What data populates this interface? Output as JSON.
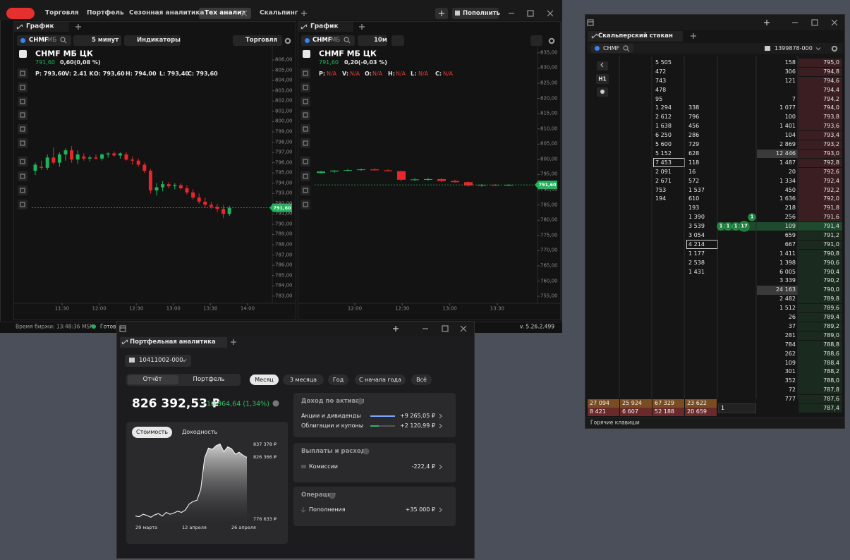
{
  "main_window": {
    "tabs": [
      "Торговля",
      "Портфель",
      "Сезонная аналитика",
      "Тех анализ",
      "Скальпинг"
    ],
    "deposit_button": "Пополнить",
    "status": {
      "exchange_time": "Время биржи: 13:48:36 MSK",
      "state": "Готов к",
      "version": "v. 5.26.2.499"
    }
  },
  "chart_left": {
    "type": "candlestick",
    "panel": "График",
    "ticker": "CHMF",
    "board": "МБ",
    "interval": "5 минут",
    "indicators": "Индикаторы",
    "trade": "Торговля",
    "title": "CHMF МБ ЦК",
    "last_price": {
      "value": 791.6,
      "label": "791,60"
    },
    "change": "0,60(0,08 %)",
    "ohlc": [
      "P: 793,60",
      "V: 2.41 K",
      "O: 793,60",
      "H: 794,00",
      "L: 793,40",
      "C: 793,60"
    ],
    "candles": [
      [
        795.2,
        796.0,
        794.8,
        795.8
      ],
      [
        795.6,
        796.2,
        795.3,
        795.5
      ],
      [
        795.5,
        796.8,
        795.3,
        796.5
      ],
      [
        796.5,
        797.5,
        795.8,
        796.0
      ],
      [
        796.0,
        797.0,
        795.6,
        796.8
      ],
      [
        796.8,
        797.4,
        796.2,
        797.2
      ],
      [
        797.2,
        797.6,
        796.0,
        796.3
      ],
      [
        796.3,
        797.2,
        795.9,
        796.8
      ],
      [
        796.6,
        796.9,
        796.2,
        796.4
      ],
      [
        796.4,
        796.7,
        796.1,
        796.5
      ],
      [
        796.5,
        796.8,
        796.3,
        796.4
      ],
      [
        796.4,
        796.9,
        796.2,
        796.8
      ],
      [
        796.8,
        797.0,
        796.5,
        796.9
      ],
      [
        796.9,
        797.1,
        796.6,
        796.7
      ],
      [
        796.7,
        797.0,
        796.4,
        796.9
      ],
      [
        796.8,
        797.0,
        796.2,
        796.3
      ],
      [
        796.3,
        796.6,
        795.8,
        796.2
      ],
      [
        796.2,
        796.4,
        795.6,
        795.8
      ],
      [
        795.8,
        796.0,
        795.0,
        795.2
      ],
      [
        795.2,
        795.4,
        793.0,
        793.3
      ],
      [
        793.3,
        794.0,
        792.8,
        793.6
      ],
      [
        793.6,
        794.2,
        793.2,
        793.9
      ],
      [
        793.9,
        794.1,
        793.5,
        793.7
      ],
      [
        793.7,
        794.0,
        793.4,
        793.8
      ],
      [
        793.8,
        794.0,
        793.4,
        793.5
      ],
      [
        793.5,
        793.8,
        792.9,
        793.1
      ],
      [
        793.1,
        793.4,
        792.4,
        792.6
      ],
      [
        792.6,
        793.0,
        792.0,
        792.2
      ],
      [
        792.2,
        792.6,
        791.6,
        791.9
      ],
      [
        791.9,
        792.2,
        791.5,
        791.7
      ],
      [
        791.7,
        792.0,
        791.2,
        791.5
      ],
      [
        791.5,
        791.9,
        790.6,
        791.0
      ],
      [
        791.0,
        791.8,
        790.8,
        791.6
      ]
    ],
    "ylim": [
      782.3,
      806.9
    ],
    "yticks": [
      {
        "value": 806,
        "label": "806,00"
      },
      {
        "value": 805,
        "label": "805,00"
      },
      {
        "value": 804,
        "label": "804,00"
      },
      {
        "value": 803,
        "label": "803,00"
      },
      {
        "value": 802,
        "label": "802,00"
      },
      {
        "value": 801,
        "label": "801,00"
      },
      {
        "value": 800,
        "label": "800,00"
      },
      {
        "value": 799,
        "label": "799,00"
      },
      {
        "value": 798,
        "label": "798,00"
      },
      {
        "value": 797,
        "label": "797,00"
      },
      {
        "value": 796,
        "label": "796,00"
      },
      {
        "value": 795,
        "label": "795,00"
      },
      {
        "value": 794,
        "label": "794,00"
      },
      {
        "value": 793,
        "label": "793,00"
      },
      {
        "value": 792,
        "label": "792,00"
      },
      {
        "value": 791,
        "label": "791,00"
      },
      {
        "value": 790,
        "label": "790,00"
      },
      {
        "value": 789,
        "label": "789,00"
      },
      {
        "value": 788,
        "label": "788,00"
      },
      {
        "value": 787,
        "label": "787,00"
      },
      {
        "value": 786,
        "label": "786,00"
      },
      {
        "value": 785,
        "label": "785,00"
      },
      {
        "value": 784,
        "label": "784,00"
      },
      {
        "value": 783,
        "label": "783,00"
      }
    ],
    "xticks": [
      "11:30",
      "12:00",
      "12:30",
      "13:00",
      "13:30",
      "14:00"
    ]
  },
  "chart_right": {
    "type": "candlestick",
    "panel": "График",
    "ticker": "CHMF",
    "board": "МБ",
    "interval": "10м",
    "title": "CHMF МБ ЦК",
    "last_price": {
      "value": 791.6,
      "label": "791,60"
    },
    "change": "0,20(-0,03 %)",
    "ohlc_labels": [
      "P:",
      "V:",
      "O:",
      "H:",
      "L:",
      "C:"
    ],
    "na": "N/A",
    "candles": [
      [
        795.5,
        796.2,
        795.3,
        796.0
      ],
      [
        796.0,
        796.5,
        795.6,
        796.3
      ],
      [
        796.3,
        796.8,
        796.0,
        796.5
      ],
      [
        796.5,
        797.0,
        796.2,
        796.7
      ],
      [
        796.7,
        797.1,
        796.3,
        796.4
      ],
      [
        796.4,
        796.8,
        796.0,
        796.1
      ],
      [
        796.1,
        796.3,
        792.8,
        793.3
      ],
      [
        793.3,
        793.8,
        792.9,
        793.4
      ],
      [
        793.4,
        793.9,
        793.0,
        793.5
      ],
      [
        793.5,
        793.8,
        792.6,
        792.9
      ],
      [
        792.9,
        793.3,
        792.3,
        792.5
      ],
      [
        792.5,
        792.8,
        791.0,
        791.4
      ],
      [
        791.4,
        791.9,
        791.0,
        791.6
      ],
      [
        791.6,
        791.9,
        791.2,
        791.4
      ],
      [
        791.4,
        791.8,
        791.2,
        791.6
      ]
    ],
    "ylim": [
      752.7,
      836.6
    ],
    "yticks": [
      {
        "value": 835,
        "label": "835,00"
      },
      {
        "value": 830,
        "label": "830,00"
      },
      {
        "value": 825,
        "label": "825,00"
      },
      {
        "value": 820,
        "label": "820,00"
      },
      {
        "value": 815,
        "label": "815,00"
      },
      {
        "value": 810,
        "label": "810,00"
      },
      {
        "value": 805,
        "label": "805,00"
      },
      {
        "value": 800,
        "label": "800,00"
      },
      {
        "value": 795,
        "label": "795,00"
      },
      {
        "value": 790,
        "label": "790,00"
      },
      {
        "value": 785,
        "label": "785,00"
      },
      {
        "value": 780,
        "label": "780,00"
      },
      {
        "value": 775,
        "label": "775,00"
      },
      {
        "value": 770,
        "label": "770,00"
      },
      {
        "value": 765,
        "label": "765,00"
      },
      {
        "value": 760,
        "label": "760,00"
      },
      {
        "value": 755,
        "label": "755,00"
      }
    ],
    "xticks": [
      "12:00",
      "12:30",
      "13:00",
      "13:30"
    ]
  },
  "scalper": {
    "title": "Скальперский стакан",
    "ticker": "CHMF",
    "account": "1399878-000",
    "timeframe": "H1",
    "book": {
      "prices": [
        "795,0",
        "794,8",
        "794,6",
        "794,4",
        "794,2",
        "794,0",
        "793,8",
        "793,6",
        "793,4",
        "793,2",
        "793,0",
        "792,8",
        "792,6",
        "792,4",
        "792,2",
        "792,0",
        "791,8",
        "791,6",
        "791,4",
        "791,2",
        "791,0",
        "790,8",
        "790,6",
        "790,4",
        "790,2",
        "790,0",
        "789,8",
        "789,6",
        "789,4",
        "789,2",
        "789,0",
        "788,8",
        "788,6",
        "788,4",
        "788,2",
        "788,0",
        "787,8",
        "787,6",
        "787,4"
      ],
      "volumes": [
        "158",
        "306",
        "121",
        null,
        "7",
        "1 077",
        "100",
        "1 401",
        "104",
        "2 869",
        "12 446",
        "1 487",
        "20",
        "1 334",
        "450",
        "1 636",
        "218",
        "256",
        "109",
        "659",
        "667",
        "1 411",
        "1 398",
        "6 005",
        "3 339",
        "24 163",
        "2 482",
        "1 512",
        "26",
        "37",
        "281",
        "784",
        "262",
        "109",
        "301",
        "352",
        "72",
        "777",
        null
      ]
    },
    "clusters": [
      [
        "5 505",
        "472",
        "743",
        "478",
        "95",
        "1 294",
        "2 612",
        "1 638",
        "6 250",
        "5 600",
        "5 152",
        "7 453",
        "2 091",
        "2 671",
        "753",
        "194",
        null,
        null,
        null,
        null,
        null,
        null,
        null,
        null,
        null,
        null,
        null,
        null,
        null,
        null,
        null,
        null,
        null,
        null,
        null,
        null,
        null,
        null,
        null
      ],
      [
        null,
        null,
        null,
        null,
        null,
        "338",
        "796",
        "456",
        "286",
        "729",
        "628",
        "118",
        "16",
        "572",
        "1 537",
        "610",
        "193",
        "1 390",
        "3 539",
        "3 054",
        "4 214",
        "1 177",
        "2 538",
        "1 431",
        null,
        null,
        null,
        null,
        null,
        null,
        null,
        null,
        null,
        null,
        null,
        null,
        null,
        null,
        null
      ]
    ],
    "trades": [
      "1",
      "1",
      "1",
      "17",
      "1"
    ],
    "totals": [
      [
        "27 094",
        "25 924",
        "67 329",
        "23 622"
      ],
      [
        "8 421",
        "6 607",
        "52 188",
        "20 659"
      ]
    ],
    "quantity": "1",
    "hotkeys": "Горячие клавиши"
  },
  "portfolio": {
    "title": "Портфельная аналитика",
    "account": "10411002-000",
    "views": [
      "Отчёт",
      "Портфель"
    ],
    "periods": [
      "Месяц",
      "3 месяца",
      "Год",
      "С начала года",
      "Всё"
    ],
    "total": "826 392,53 ₽",
    "gain": "+10 964,64 (1,34%)",
    "chart": {
      "type": "area",
      "modes": [
        "Стоимость",
        "Доходность"
      ],
      "values": [
        778000,
        777500,
        779500,
        778500,
        777000,
        779000,
        780000,
        778000,
        781000,
        779500,
        780500,
        782000,
        781000,
        783000,
        788000,
        790000,
        791000,
        800000,
        826000,
        834000,
        833000,
        836000,
        837378,
        831000,
        835000,
        833500,
        829000,
        830500,
        828000,
        826366
      ],
      "ylim": [
        772000,
        840000
      ],
      "labels": [
        "837 378 ₽",
        "826 366 ₽",
        "776 633 ₽"
      ],
      "x_labels": [
        "29 марта",
        "12 апреля",
        "26 апреля"
      ]
    },
    "income": {
      "title": "Доход по активам",
      "rows": [
        [
          "Акции и дивиденды",
          "+9 265,05 ₽"
        ],
        [
          "Облигации и купоны",
          "+2 120,99 ₽"
        ]
      ]
    },
    "payments": {
      "title": "Выплаты и расход",
      "rows": [
        [
          "Комиссии",
          "-222,4 ₽"
        ]
      ]
    },
    "operations": {
      "title": "Операции",
      "rows": [
        [
          "Пополнения",
          "+35 000 ₽"
        ]
      ]
    }
  }
}
